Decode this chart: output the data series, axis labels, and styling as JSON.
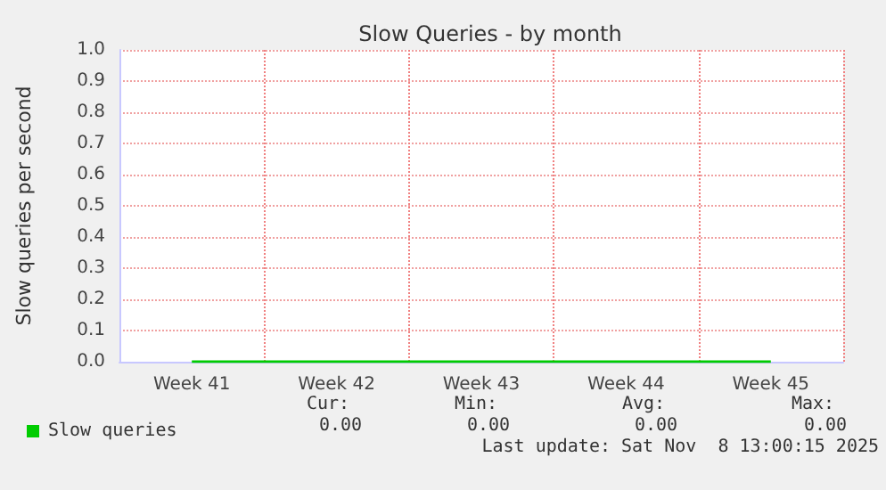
{
  "chart_data": {
    "type": "line",
    "title": "Slow Queries - by month",
    "ylabel": "Slow queries per second",
    "categories": [
      "Week 41",
      "Week 42",
      "Week 43",
      "Week 44",
      "Week 45"
    ],
    "series": [
      {
        "name": "Slow queries",
        "color": "#00cc00",
        "values": [
          0,
          0,
          0,
          0,
          0
        ]
      }
    ],
    "ylim": [
      0,
      1
    ],
    "yticks": [
      {
        "value": 0,
        "label": "0.0"
      },
      0.1,
      0.2,
      0.3,
      0.4,
      0.5,
      0.6,
      0.7,
      0.8,
      0.9,
      {
        "value": 1,
        "label": "1.0"
      }
    ],
    "grid": true,
    "legend": "bottom left",
    "marker": "none",
    "line_style": "solid",
    "annotations": [
      "Cur:",
      "0.00",
      "Min:",
      "0.00",
      "Avg:",
      "0.00",
      "Max:",
      "0.00",
      "Last update: Sat Nov  8 13:00:15 2025"
    ]
  }
}
